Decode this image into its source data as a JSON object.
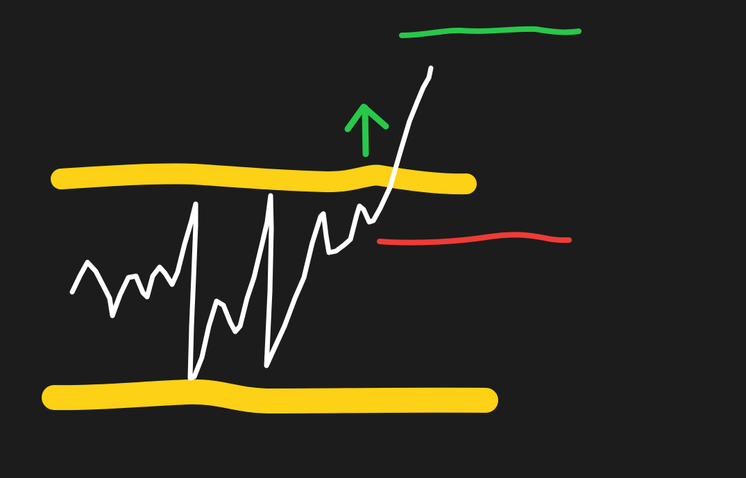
{
  "diagram": {
    "colors": {
      "background": "#1c1c1c",
      "range_boundary": "#fcd116",
      "price": "#ffffff",
      "target": "#28c84a",
      "stop": "#ef3b36",
      "arrow": "#28c84a"
    },
    "elements": [
      {
        "name": "resistance-line",
        "role": "upper range boundary",
        "color_key": "range_boundary"
      },
      {
        "name": "support-line",
        "role": "lower range boundary",
        "color_key": "range_boundary"
      },
      {
        "name": "price-path",
        "role": "price action breaking out upward",
        "color_key": "price"
      },
      {
        "name": "target-line",
        "role": "upside target level",
        "color_key": "target"
      },
      {
        "name": "stop-line",
        "role": "stop level just below resistance",
        "color_key": "stop"
      },
      {
        "name": "arrow-up-icon",
        "role": "breakout direction",
        "color_key": "arrow"
      }
    ]
  }
}
